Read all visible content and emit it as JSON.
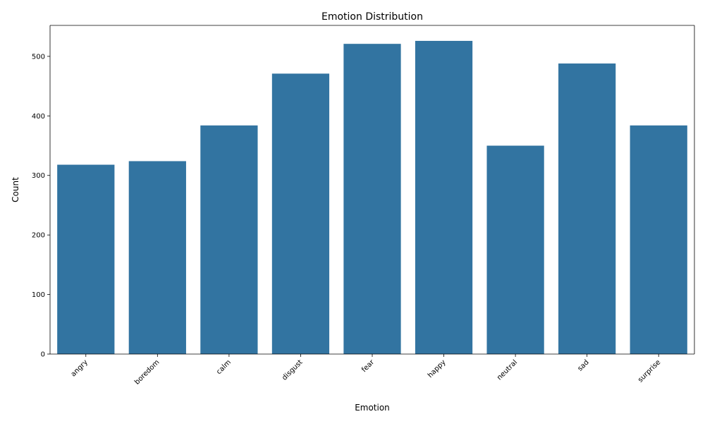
{
  "chart_data": {
    "type": "bar",
    "title": "Emotion Distribution",
    "xlabel": "Emotion",
    "ylabel": "Count",
    "categories": [
      "angry",
      "boredom",
      "calm",
      "disgust",
      "fear",
      "happy",
      "neutral",
      "sad",
      "surprise"
    ],
    "values": [
      318,
      324,
      384,
      471,
      521,
      526,
      350,
      488,
      384
    ],
    "ylim": [
      0,
      552
    ],
    "yticks": [
      0,
      100,
      200,
      300,
      400,
      500
    ],
    "bar_color": "#3274a1",
    "grid": false,
    "legend": "none"
  }
}
